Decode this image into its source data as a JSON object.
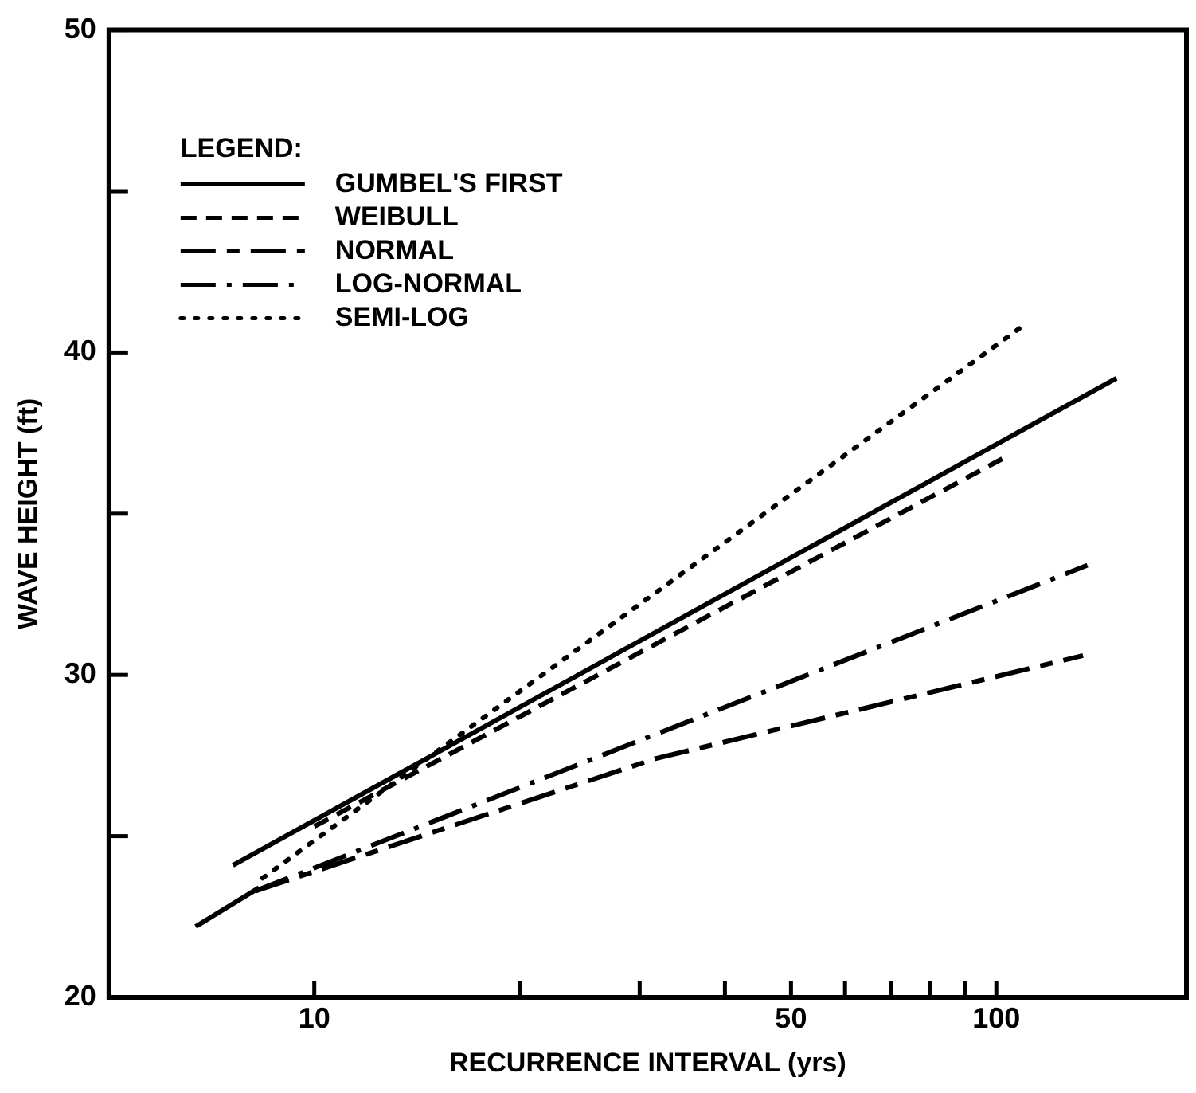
{
  "chart_data": {
    "type": "line",
    "xlabel": "RECURRENCE INTERVAL (yrs)",
    "ylabel": "WAVE HEIGHT (ft)",
    "legend_title": "LEGEND:",
    "legend": "top left",
    "grid": false,
    "log": "x",
    "marker": "none",
    "xlim": [
      5,
      190
    ],
    "xticks": [
      10,
      {
        "value": 20,
        "label": null
      },
      {
        "value": 30,
        "label": null
      },
      {
        "value": 40,
        "label": null
      },
      50,
      {
        "value": 60,
        "label": null
      },
      {
        "value": 70,
        "label": null
      },
      {
        "value": 80,
        "label": null
      },
      {
        "value": 90,
        "label": null
      },
      100
    ],
    "ylim": [
      20,
      50
    ],
    "yticks": [
      20,
      {
        "value": 25,
        "label": null
      },
      30,
      {
        "value": 35,
        "label": null
      },
      40,
      {
        "value": 45,
        "label": null
      },
      50
    ],
    "series": [
      {
        "name": "GUMBEL'S FIRST",
        "color": "#000000",
        "line_style": "solid",
        "x": [
          7.6,
          150
        ],
        "values": [
          24.1,
          39.2
        ]
      },
      {
        "name": "WEIBULL",
        "color": "#000000",
        "line_style": "dashed",
        "x": [
          10,
          102
        ],
        "values": [
          25.3,
          36.7
        ]
      },
      {
        "name": "NORMAL",
        "color": "#000000",
        "line_style": "longdash",
        "x": [
          8.2,
          31.6,
          134
        ],
        "values": [
          23.3,
          27.4,
          30.6
        ]
      },
      {
        "name": "LOG-NORMAL",
        "color": "#000000",
        "line_style": "dashdot",
        "x": [
          8.2,
          136
        ],
        "values": [
          23.3,
          33.4
        ]
      },
      {
        "name": "SEMI-LOG",
        "color": "#000000",
        "line_style": "dotted",
        "x": [
          8.4,
          109
        ],
        "values": [
          23.7,
          40.8
        ]
      },
      {
        "color": "#000000",
        "line_style": "solid",
        "x": [
          6.7,
          8.3
        ],
        "values": [
          22.2,
          23.4
        ]
      }
    ]
  }
}
